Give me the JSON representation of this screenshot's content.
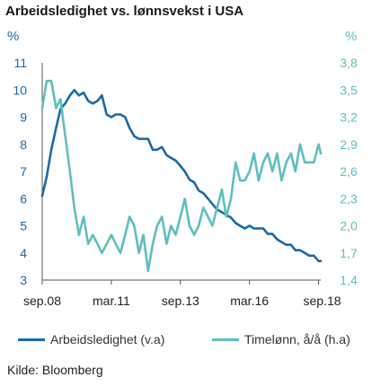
{
  "chart_data": {
    "type": "line",
    "title": "Arbeidsledighet vs. lønnsvekst i USA",
    "y_unit_left": "%",
    "y_unit_right": "%",
    "xlim": [
      2008.67,
      2018.75
    ],
    "x_ticks": [
      {
        "x": 2008.67,
        "label": "sep.08"
      },
      {
        "x": 2011.17,
        "label": "mar.11"
      },
      {
        "x": 2013.67,
        "label": "sep.13"
      },
      {
        "x": 2016.17,
        "label": "mar.16"
      },
      {
        "x": 2018.67,
        "label": "sep.18"
      }
    ],
    "y_left": {
      "lim": [
        3,
        11
      ],
      "ticks": [
        "3",
        "4",
        "5",
        "6",
        "7",
        "8",
        "9",
        "10",
        "11"
      ]
    },
    "y_right": {
      "lim": [
        1.4,
        3.8
      ],
      "ticks": [
        "1,4",
        "1,7",
        "2,0",
        "2,3",
        "2,6",
        "2,9",
        "3,2",
        "3,5",
        "3,8"
      ]
    },
    "grid": false,
    "legend_position": "bottom",
    "series": [
      {
        "name": "Arbeidsledighet (v.a)",
        "axis": "left",
        "color": "#1a6aa8",
        "x": [
          2008.67,
          2008.83,
          2009.0,
          2009.17,
          2009.33,
          2009.5,
          2009.67,
          2009.83,
          2010.0,
          2010.17,
          2010.33,
          2010.5,
          2010.67,
          2010.83,
          2011.0,
          2011.17,
          2011.33,
          2011.5,
          2011.67,
          2011.83,
          2012.0,
          2012.17,
          2012.33,
          2012.5,
          2012.67,
          2012.83,
          2013.0,
          2013.17,
          2013.33,
          2013.5,
          2013.67,
          2013.83,
          2014.0,
          2014.17,
          2014.33,
          2014.5,
          2014.67,
          2014.83,
          2015.0,
          2015.17,
          2015.33,
          2015.5,
          2015.67,
          2015.83,
          2016.0,
          2016.17,
          2016.33,
          2016.5,
          2016.67,
          2016.83,
          2017.0,
          2017.17,
          2017.33,
          2017.5,
          2017.67,
          2017.83,
          2018.0,
          2018.17,
          2018.33,
          2018.5,
          2018.67,
          2018.75
        ],
        "values": [
          6.1,
          6.8,
          7.8,
          8.6,
          9.3,
          9.5,
          9.8,
          10.0,
          9.8,
          9.9,
          9.6,
          9.5,
          9.6,
          9.8,
          9.1,
          9.0,
          9.1,
          9.1,
          9.0,
          8.6,
          8.3,
          8.2,
          8.2,
          8.2,
          7.8,
          7.8,
          7.9,
          7.6,
          7.5,
          7.4,
          7.2,
          7.0,
          6.7,
          6.6,
          6.3,
          6.2,
          6.0,
          5.8,
          5.6,
          5.5,
          5.4,
          5.3,
          5.1,
          5.0,
          4.9,
          5.0,
          4.9,
          4.9,
          4.9,
          4.7,
          4.7,
          4.5,
          4.4,
          4.3,
          4.3,
          4.1,
          4.1,
          4.0,
          3.9,
          3.9,
          3.7,
          3.7
        ]
      },
      {
        "name": "Timelønn, å/å (h.a)",
        "axis": "right",
        "color": "#5fbfbf",
        "x": [
          2008.67,
          2008.83,
          2009.0,
          2009.17,
          2009.33,
          2009.5,
          2009.67,
          2009.83,
          2010.0,
          2010.17,
          2010.33,
          2010.5,
          2010.67,
          2010.83,
          2011.0,
          2011.17,
          2011.33,
          2011.5,
          2011.67,
          2011.83,
          2012.0,
          2012.17,
          2012.33,
          2012.5,
          2012.67,
          2012.83,
          2013.0,
          2013.17,
          2013.33,
          2013.5,
          2013.67,
          2013.83,
          2014.0,
          2014.17,
          2014.33,
          2014.5,
          2014.67,
          2014.83,
          2015.0,
          2015.17,
          2015.33,
          2015.5,
          2015.67,
          2015.83,
          2016.0,
          2016.17,
          2016.33,
          2016.5,
          2016.67,
          2016.83,
          2017.0,
          2017.17,
          2017.33,
          2017.5,
          2017.67,
          2017.83,
          2018.0,
          2018.17,
          2018.33,
          2018.5,
          2018.67,
          2018.75
        ],
        "values": [
          3.3,
          3.6,
          3.6,
          3.3,
          3.4,
          3.0,
          2.6,
          2.2,
          1.9,
          2.1,
          1.8,
          1.9,
          1.8,
          1.7,
          1.8,
          1.9,
          1.8,
          1.7,
          1.9,
          2.1,
          2.0,
          1.7,
          1.9,
          1.5,
          1.8,
          2.0,
          2.1,
          1.8,
          2.0,
          1.9,
          2.1,
          2.3,
          2.0,
          1.9,
          2.0,
          2.2,
          2.1,
          2.0,
          2.2,
          2.4,
          2.1,
          2.3,
          2.7,
          2.5,
          2.5,
          2.6,
          2.8,
          2.5,
          2.7,
          2.8,
          2.6,
          2.8,
          2.5,
          2.7,
          2.8,
          2.6,
          2.9,
          2.7,
          2.7,
          2.7,
          2.9,
          2.8
        ]
      }
    ],
    "source": "Kilde: Bloomberg"
  }
}
